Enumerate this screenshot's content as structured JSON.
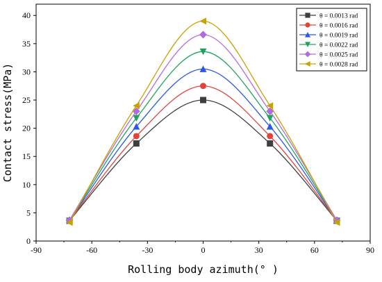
{
  "chart_data": {
    "type": "line",
    "title": "",
    "xlabel": "Rolling body azimuth(° )",
    "ylabel": "Contact stress(MPa)",
    "xlim": [
      -90,
      90
    ],
    "ylim": [
      0,
      42
    ],
    "xticks": [
      -90,
      -60,
      -30,
      0,
      30,
      60,
      90
    ],
    "yticks": [
      0,
      5,
      10,
      15,
      20,
      25,
      30,
      35,
      40
    ],
    "grid": false,
    "legend_position": "top-right",
    "x": [
      -72,
      -36,
      0,
      36,
      72
    ],
    "series": [
      {
        "name": "θ = 0.0013 rad",
        "color": "#3f3f3f",
        "marker": "square",
        "values": [
          3.6,
          17.3,
          25.0,
          17.3,
          3.6
        ]
      },
      {
        "name": "θ = 0.0016 rad",
        "color": "#e0443a",
        "marker": "circle",
        "values": [
          3.6,
          18.6,
          27.5,
          18.6,
          3.6
        ]
      },
      {
        "name": "θ = 0.0019 rad",
        "color": "#2a57e8",
        "marker": "triangle-up",
        "values": [
          3.6,
          20.3,
          30.5,
          20.3,
          3.6
        ]
      },
      {
        "name": "θ = 0.0022 rad",
        "color": "#1fa35b",
        "marker": "triangle-down",
        "values": [
          3.6,
          21.8,
          33.6,
          21.8,
          3.6
        ]
      },
      {
        "name": "θ = 0.0025 rad",
        "color": "#b06be0",
        "marker": "diamond",
        "values": [
          3.7,
          23.0,
          36.6,
          23.0,
          3.7
        ]
      },
      {
        "name": "θ = 0.0028 rad",
        "color": "#c9a100",
        "marker": "triangle-left",
        "values": [
          3.3,
          24.0,
          39.0,
          24.0,
          3.3
        ]
      }
    ]
  }
}
